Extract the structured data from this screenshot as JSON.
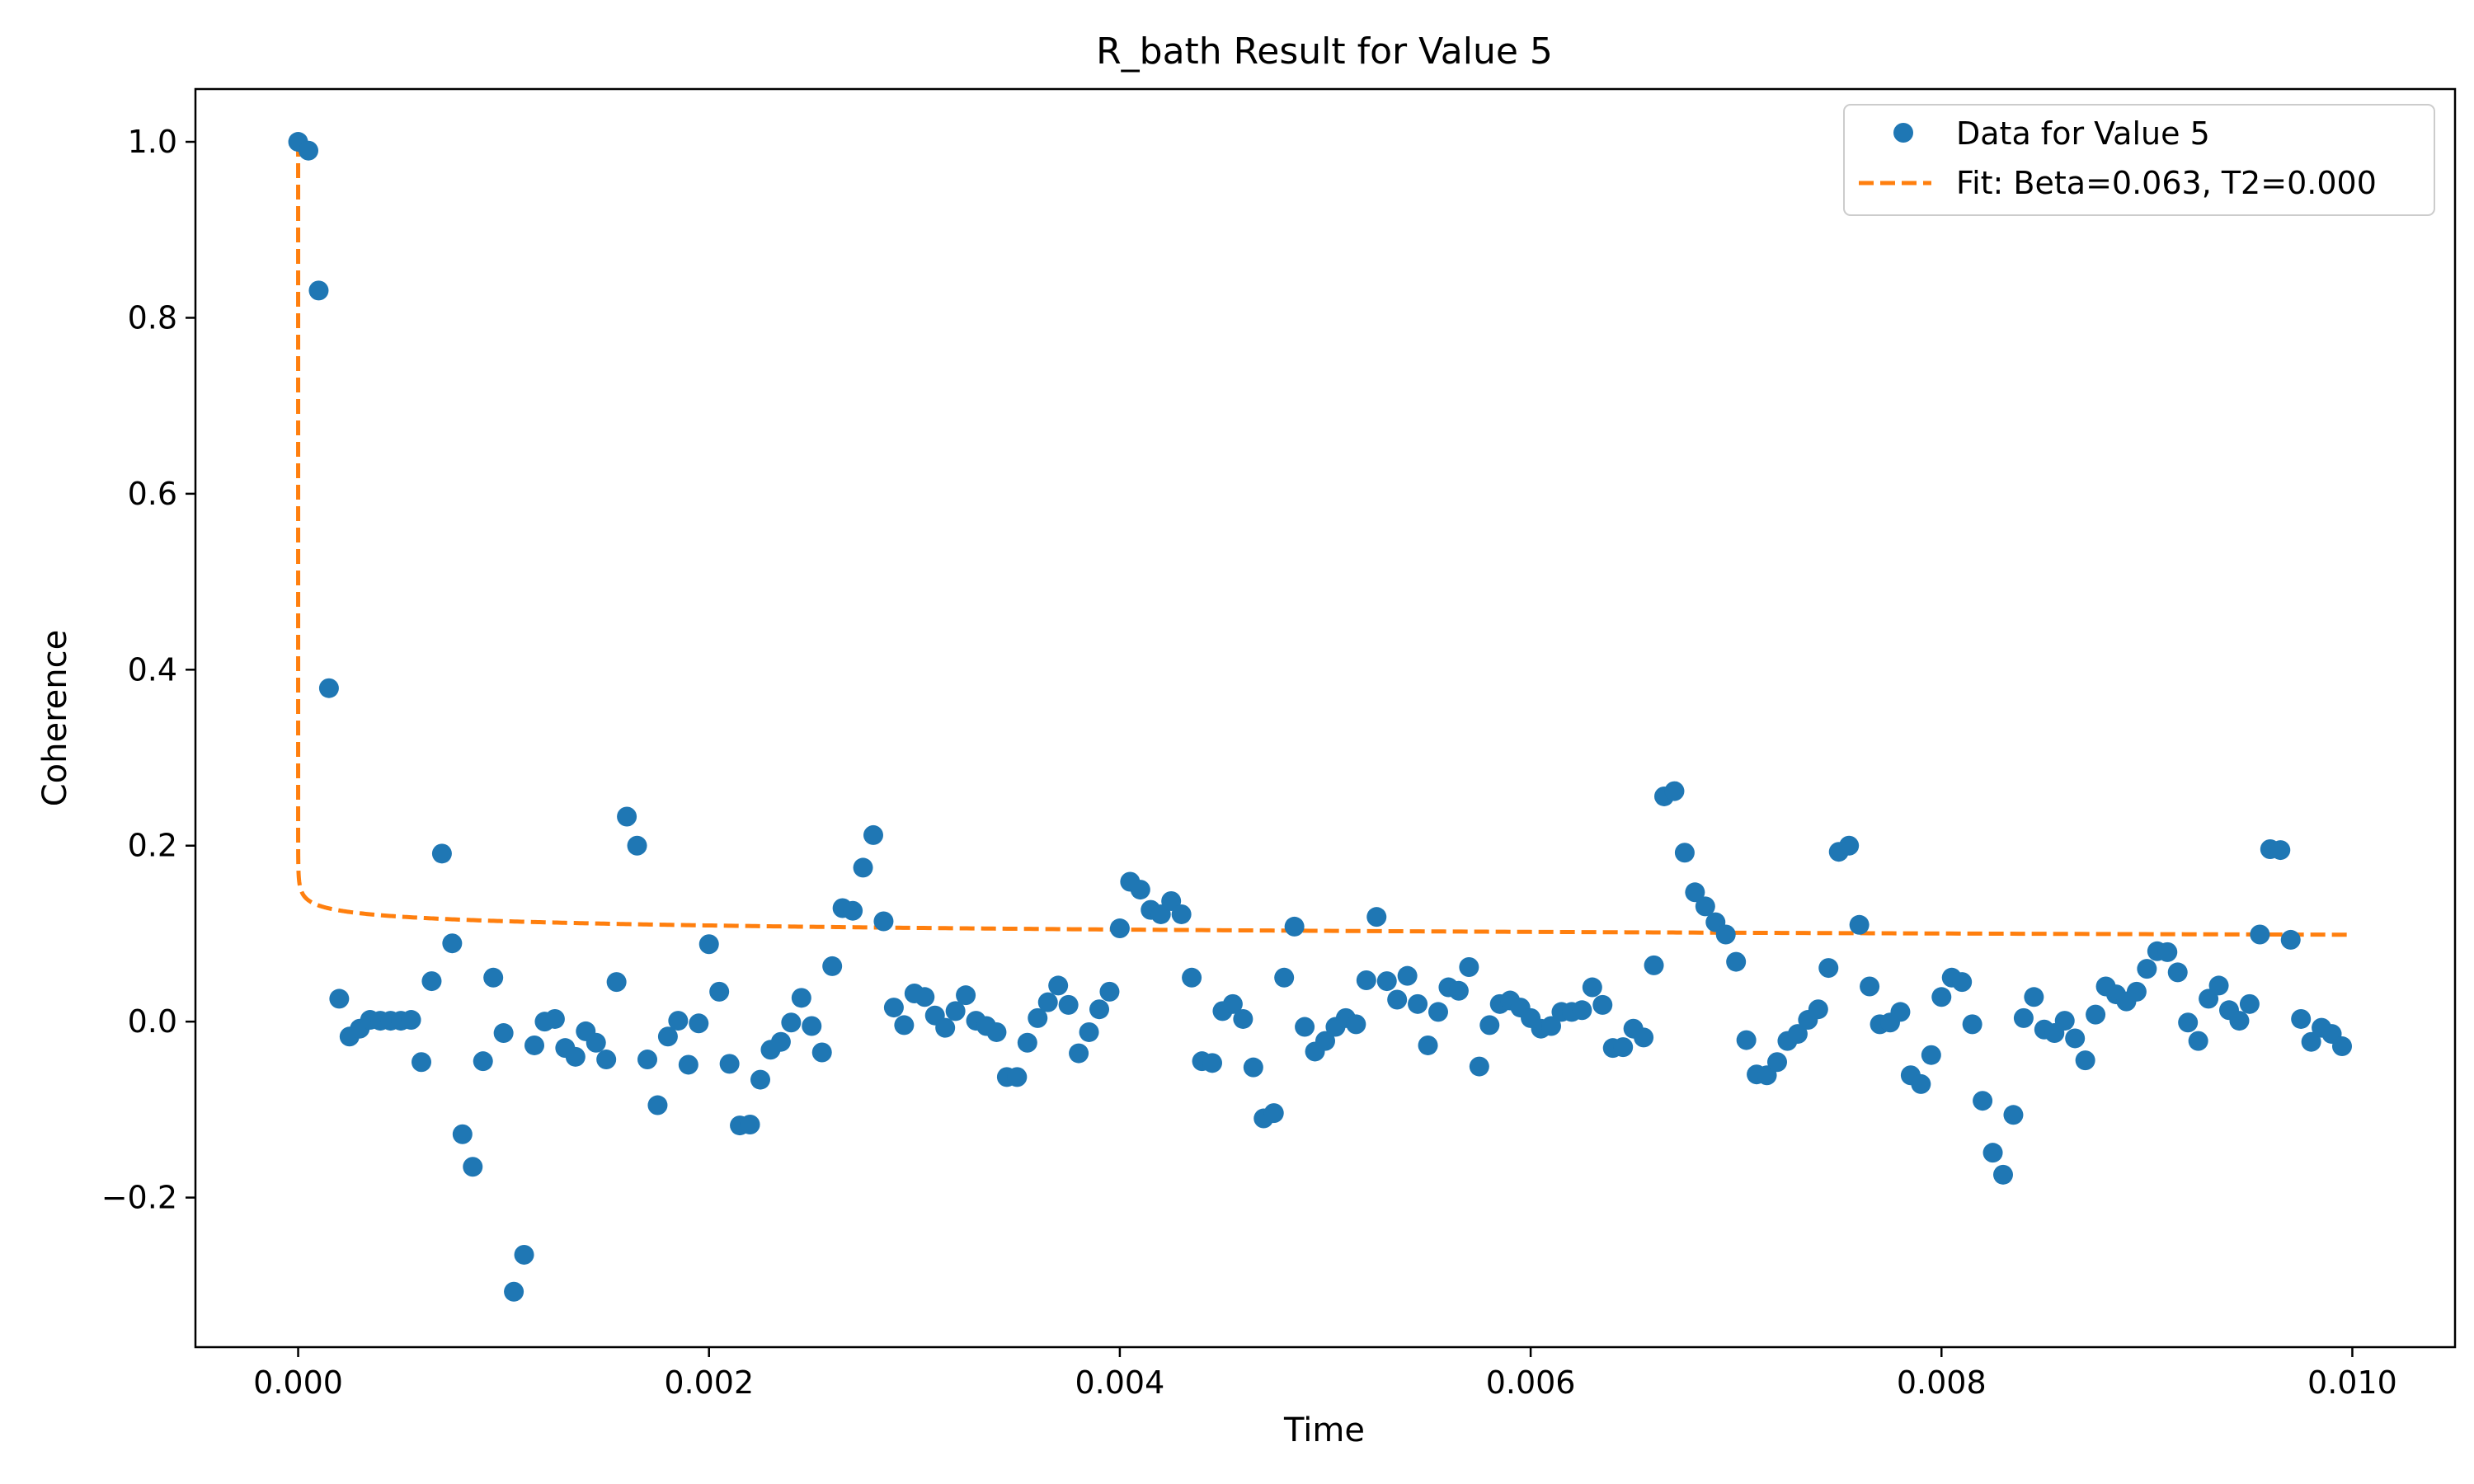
{
  "chart_data": {
    "type": "scatter",
    "title": "R_bath Result for Value 5",
    "xlabel": "Time",
    "ylabel": "Coherence",
    "xlim": [
      -0.0005,
      0.0105
    ],
    "ylim": [
      -0.37,
      1.06
    ],
    "xticks": [
      0.0,
      0.002,
      0.004,
      0.006,
      0.008,
      0.01
    ],
    "xtick_labels": [
      "0.000",
      "0.002",
      "0.004",
      "0.006",
      "0.008",
      "0.010"
    ],
    "yticks": [
      -0.2,
      0.0,
      0.2,
      0.4,
      0.6,
      0.8,
      1.0
    ],
    "ytick_labels": [
      "−0.2",
      "0.0",
      "0.2",
      "0.4",
      "0.6",
      "0.8",
      "1.0"
    ],
    "grid": false,
    "legend_position": "top-right",
    "series": [
      {
        "name": "Data for Value 5",
        "kind": "scatter",
        "color": "#1f77b4",
        "x_start": 0.0,
        "x_step": 5e-05,
        "y": [
          1.0,
          0.99,
          0.831,
          0.379,
          0.026,
          -0.017,
          -0.008,
          0.002,
          0.001,
          0.001,
          0.001,
          0.002,
          -0.046,
          0.046,
          0.191,
          0.089,
          -0.128,
          -0.165,
          -0.045,
          0.05,
          -0.013,
          -0.307,
          -0.265,
          -0.027,
          0.0,
          0.003,
          -0.03,
          -0.04,
          -0.011,
          -0.024,
          -0.043,
          0.045,
          0.233,
          0.2,
          -0.043,
          -0.095,
          -0.017,
          0.001,
          -0.049,
          -0.002,
          0.088,
          0.034,
          -0.048,
          -0.118,
          -0.117,
          -0.066,
          -0.032,
          -0.023,
          -0.001,
          0.027,
          -0.005,
          -0.035,
          0.063,
          0.129,
          0.126,
          0.175,
          0.212,
          0.114,
          0.016,
          -0.004,
          0.032,
          0.028,
          0.007,
          -0.007,
          0.012,
          0.03,
          0.001,
          -0.005,
          -0.012,
          -0.063,
          -0.063,
          -0.024,
          0.004,
          0.022,
          0.041,
          0.019,
          -0.036,
          -0.012,
          0.014,
          0.034,
          0.106,
          0.159,
          0.15,
          0.127,
          0.122,
          0.137,
          0.122,
          0.05,
          -0.045,
          -0.047,
          0.012,
          0.02,
          0.003,
          -0.052,
          -0.11,
          -0.104,
          0.05,
          0.108,
          -0.006,
          -0.034,
          -0.022,
          -0.006,
          0.004,
          -0.003,
          0.047,
          0.119,
          0.046,
          0.025,
          0.052,
          0.02,
          -0.027,
          0.011,
          0.039,
          0.035,
          0.062,
          -0.051,
          -0.004,
          0.02,
          0.024,
          0.016,
          0.004,
          -0.008,
          -0.005,
          0.011,
          0.011,
          0.013,
          0.039,
          0.019,
          -0.03,
          -0.029,
          -0.008,
          -0.018,
          0.064,
          0.256,
          0.262,
          0.192,
          0.147,
          0.131,
          0.113,
          0.099,
          0.068,
          -0.021,
          -0.06,
          -0.061,
          -0.046,
          -0.022,
          -0.014,
          0.002,
          0.014,
          0.061,
          0.193,
          0.2,
          0.11,
          0.04,
          -0.003,
          -0.001,
          0.011,
          -0.061,
          -0.071,
          -0.038,
          0.028,
          0.05,
          0.045,
          -0.003,
          -0.09,
          -0.149,
          -0.174,
          -0.106,
          0.004,
          0.028,
          -0.009,
          -0.013,
          0.001,
          -0.019,
          -0.044,
          0.008,
          0.04,
          0.031,
          0.023,
          0.034,
          0.06,
          0.08,
          0.079,
          0.056,
          -0.001,
          -0.022,
          0.026,
          0.041,
          0.013,
          0.001,
          0.02,
          0.099,
          0.196,
          0.195,
          0.093,
          0.003,
          -0.023,
          -0.007,
          -0.014,
          -0.028
        ]
      },
      {
        "name": "Fit: Beta=0.063, T2=0.000",
        "kind": "line",
        "style": "dashed",
        "color": "#ff7f0e",
        "model": "A * t^(-Beta)",
        "beta": 0.063,
        "amplitude": 0.0739,
        "y_at_t0": 1.0
      }
    ]
  }
}
